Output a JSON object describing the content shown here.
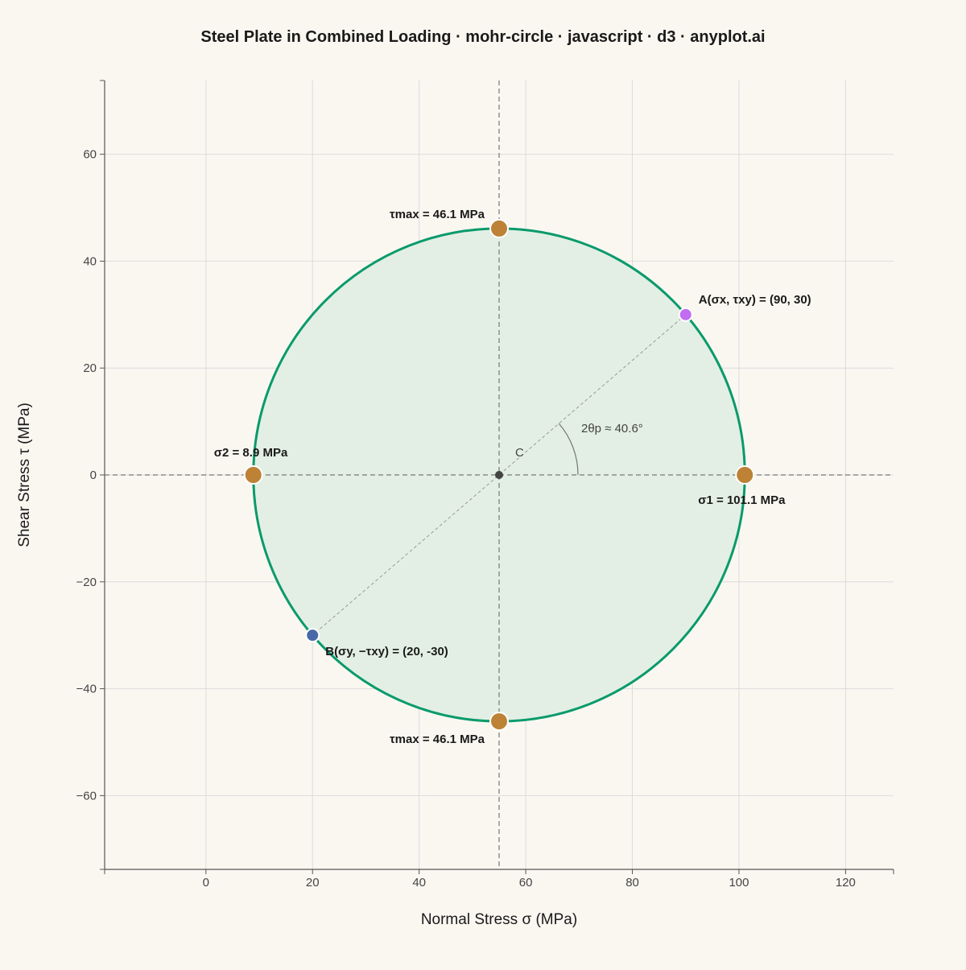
{
  "chart_data": {
    "type": "scatter",
    "title": "Steel Plate in Combined Loading · mohr-circle · javascript · d3 · anyplot.ai",
    "xlabel": "Normal Stress σ (MPa)",
    "ylabel": "Shear Stress τ (MPa)",
    "xlim": [
      -19,
      129
    ],
    "ylim": [
      -73.8,
      73.8
    ],
    "x_ticks": [
      0,
      20,
      40,
      60,
      80,
      100,
      120
    ],
    "y_ticks": [
      -60,
      -40,
      -20,
      0,
      20,
      40,
      60
    ],
    "x_tick_labels": [
      "0",
      "20",
      "40",
      "60",
      "80",
      "100",
      "120"
    ],
    "y_tick_labels": [
      "−60",
      "−40",
      "−20",
      "0",
      "20",
      "40",
      "60"
    ],
    "grid": true,
    "circle": {
      "center": [
        55,
        0
      ],
      "radius": 46.1
    },
    "points": [
      {
        "id": "A",
        "x": 90,
        "y": 30,
        "label": "A(σx, τxy) = (90, 30)",
        "color": "#c26cf0"
      },
      {
        "id": "B",
        "x": 20,
        "y": -30,
        "label": "B(σy, −τxy) = (20, -30)",
        "color": "#4a68a8"
      },
      {
        "id": "sigma1",
        "x": 101.1,
        "y": 0,
        "label": "σ1 = 101.1 MPa",
        "color": "#bd8236"
      },
      {
        "id": "sigma2",
        "x": 8.9,
        "y": 0,
        "label": "σ2 = 8.9 MPa",
        "color": "#bd8236"
      },
      {
        "id": "taumax-top",
        "x": 55,
        "y": 46.1,
        "label": "τmax = 46.1 MPa",
        "color": "#bd8236"
      },
      {
        "id": "taumax-bottom",
        "x": 55,
        "y": -46.1,
        "label": "τmax = 46.1 MPa",
        "color": "#bd8236"
      }
    ],
    "center_label": "C",
    "angle_label": "2θp ≈ 40.6°",
    "angle_deg": 40.6,
    "colors": {
      "circle_stroke": "#0a9a6c",
      "circle_fill": "#e3efe4",
      "center": "#444444",
      "background": "#faf7f1",
      "grid": "#dcdcdc"
    }
  }
}
